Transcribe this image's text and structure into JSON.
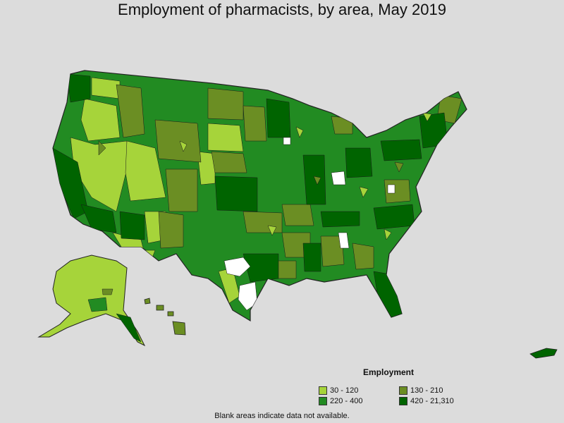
{
  "title": "Employment of pharmacists, by area, May 2019",
  "legend": {
    "title": "Employment",
    "items": [
      {
        "label": "30 - 120",
        "color": "#a6d43a"
      },
      {
        "label": "130 - 210",
        "color": "#6b8e23"
      },
      {
        "label": "220 - 400",
        "color": "#228b22"
      },
      {
        "label": "420 - 21,310",
        "color": "#006400"
      }
    ]
  },
  "footnote": "Blank areas indicate data not available.",
  "colors": {
    "background": "#dcdcdc",
    "no_data": "#ffffff",
    "border": "#222222"
  }
}
